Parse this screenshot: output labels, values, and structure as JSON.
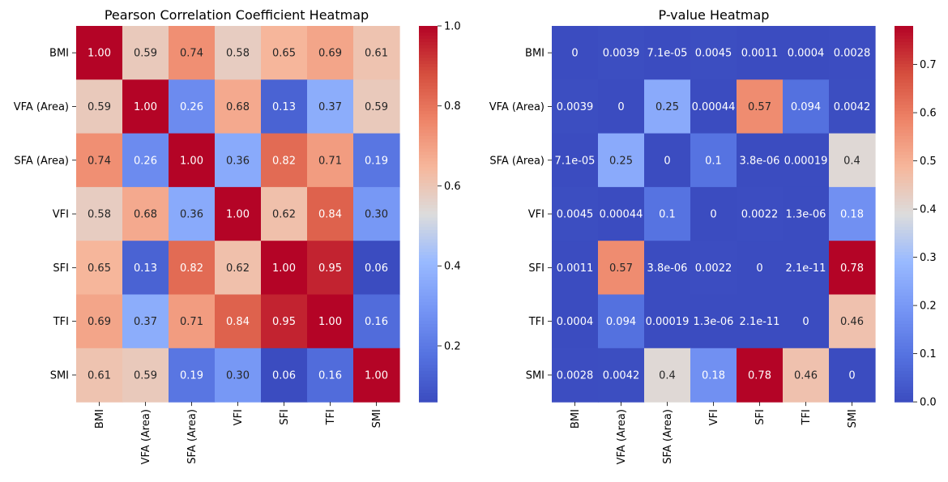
{
  "chart_data": [
    {
      "type": "heatmap",
      "title": "Pearson Correlation Coefficient Heatmap",
      "xlabel": "",
      "ylabel": "",
      "rows": [
        "BMI",
        "VFA (Area)",
        "SFA (Area)",
        "VFI",
        "SFI",
        "TFI",
        "SMI"
      ],
      "cols": [
        "BMI",
        "VFA (Area)",
        "SFA (Area)",
        "VFI",
        "SFI",
        "TFI",
        "SMI"
      ],
      "values": [
        [
          1.0,
          0.59,
          0.74,
          0.58,
          0.65,
          0.69,
          0.61
        ],
        [
          0.59,
          1.0,
          0.26,
          0.68,
          0.13,
          0.37,
          0.59
        ],
        [
          0.74,
          0.26,
          1.0,
          0.36,
          0.82,
          0.71,
          0.19
        ],
        [
          0.58,
          0.68,
          0.36,
          1.0,
          0.62,
          0.84,
          0.3
        ],
        [
          0.65,
          0.13,
          0.82,
          0.62,
          1.0,
          0.95,
          0.06
        ],
        [
          0.69,
          0.37,
          0.71,
          0.84,
          0.95,
          1.0,
          0.16
        ],
        [
          0.61,
          0.59,
          0.19,
          0.3,
          0.06,
          0.16,
          1.0
        ]
      ],
      "labels": [
        [
          "1.00",
          "0.59",
          "0.74",
          "0.58",
          "0.65",
          "0.69",
          "0.61"
        ],
        [
          "0.59",
          "1.00",
          "0.26",
          "0.68",
          "0.13",
          "0.37",
          "0.59"
        ],
        [
          "0.74",
          "0.26",
          "1.00",
          "0.36",
          "0.82",
          "0.71",
          "0.19"
        ],
        [
          "0.58",
          "0.68",
          "0.36",
          "1.00",
          "0.62",
          "0.84",
          "0.30"
        ],
        [
          "0.65",
          "0.13",
          "0.82",
          "0.62",
          "1.00",
          "0.95",
          "0.06"
        ],
        [
          "0.69",
          "0.37",
          "0.71",
          "0.84",
          "0.95",
          "1.00",
          "0.16"
        ],
        [
          "0.61",
          "0.59",
          "0.19",
          "0.30",
          "0.06",
          "0.16",
          "1.00"
        ]
      ],
      "colormap": "coolwarm",
      "color_range": [
        0.06,
        1.0
      ],
      "colorbar_ticks": [
        "0.2",
        "0.4",
        "0.6",
        "0.8",
        "1.0"
      ]
    },
    {
      "type": "heatmap",
      "title": "P-value Heatmap",
      "xlabel": "",
      "ylabel": "",
      "rows": [
        "BMI",
        "VFA (Area)",
        "SFA (Area)",
        "VFI",
        "SFI",
        "TFI",
        "SMI"
      ],
      "cols": [
        "BMI",
        "VFA (Area)",
        "SFA (Area)",
        "VFI",
        "SFI",
        "TFI",
        "SMI"
      ],
      "values": [
        [
          0,
          0.0039,
          7.1e-05,
          0.0045,
          0.0011,
          0.0004,
          0.0028
        ],
        [
          0.0039,
          0,
          0.25,
          0.00044,
          0.57,
          0.094,
          0.0042
        ],
        [
          7.1e-05,
          0.25,
          0,
          0.1,
          3.8e-06,
          0.00019,
          0.4
        ],
        [
          0.0045,
          0.00044,
          0.1,
          0,
          0.0022,
          1.3e-06,
          0.18
        ],
        [
          0.0011,
          0.57,
          3.8e-06,
          0.0022,
          0,
          2.1e-11,
          0.78
        ],
        [
          0.0004,
          0.094,
          0.00019,
          1.3e-06,
          2.1e-11,
          0,
          0.46
        ],
        [
          0.0028,
          0.0042,
          0.4,
          0.18,
          0.78,
          0.46,
          0
        ]
      ],
      "labels": [
        [
          "0",
          "0.0039",
          "7.1e-05",
          "0.0045",
          "0.0011",
          "0.0004",
          "0.0028"
        ],
        [
          "0.0039",
          "0",
          "0.25",
          "0.00044",
          "0.57",
          "0.094",
          "0.0042"
        ],
        [
          "7.1e-05",
          "0.25",
          "0",
          "0.1",
          "3.8e-06",
          "0.00019",
          "0.4"
        ],
        [
          "0.0045",
          "0.00044",
          "0.1",
          "0",
          "0.0022",
          "1.3e-06",
          "0.18"
        ],
        [
          "0.0011",
          "0.57",
          "3.8e-06",
          "0.0022",
          "0",
          "2.1e-11",
          "0.78"
        ],
        [
          "0.0004",
          "0.094",
          "0.00019",
          "1.3e-06",
          "2.1e-11",
          "0",
          "0.46"
        ],
        [
          "0.0028",
          "0.0042",
          "0.4",
          "0.18",
          "0.78",
          "0.46",
          "0"
        ]
      ],
      "colormap": "coolwarm",
      "color_range": [
        0.0,
        0.78
      ],
      "colorbar_ticks": [
        "0.0",
        "0.1",
        "0.2",
        "0.3",
        "0.4",
        "0.5",
        "0.6",
        "0.7"
      ]
    }
  ]
}
